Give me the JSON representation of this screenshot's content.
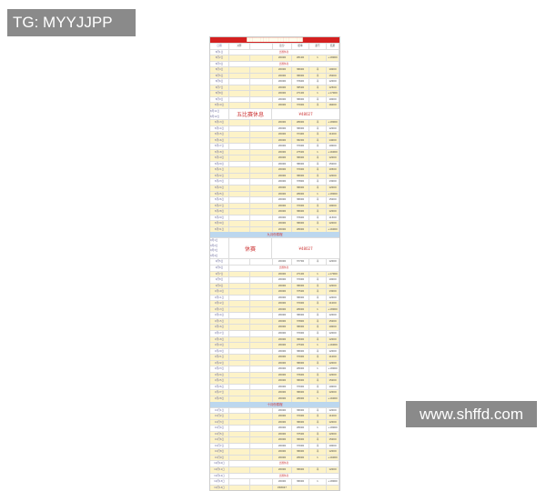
{
  "watermarks": {
    "top_left": "TG: MYYJJPP",
    "bottom_right": "www.shffd.com"
  },
  "sheet": {
    "title": "████████████████████",
    "columns": [
      "日期",
      "对阵",
      "",
      "比分",
      "赔率",
      "盈亏",
      "结果"
    ],
    "blocks": [
      {
        "type": "rows",
        "rows": [
          [
            "8月1日",
            "m:比赛休息"
          ],
          [
            "8月2日",
            "",
            "",
            "20000",
            "28100",
            "1",
            "+18000"
          ],
          [
            "8月3日",
            "m:比赛休息"
          ],
          [
            "8月4日",
            "",
            "",
            "20000",
            "38000",
            "平",
            "10000"
          ],
          [
            "8月5日",
            "",
            "",
            "20000",
            "38000",
            "平",
            "15000"
          ],
          [
            "8月6日",
            "",
            "",
            "20000",
            "37600",
            "平",
            "12000"
          ],
          [
            "8月7日",
            "",
            "",
            "20000",
            "38500",
            "平",
            "12500"
          ],
          [
            "8月8日",
            "",
            "",
            "20000",
            "27100",
            "1",
            "+17000"
          ],
          [
            "8月9日",
            "",
            "",
            "20000",
            "38000",
            "平",
            "10000"
          ],
          [
            "8月10日",
            "",
            "",
            "20000",
            "37000",
            "平",
            "16000"
          ]
        ]
      },
      {
        "type": "big",
        "dates": [
          "8月11日",
          "8月12日"
        ],
        "left": "五比赛休息",
        "right": "¥48027"
      },
      {
        "type": "rows",
        "rows": [
          [
            "8月13日",
            "",
            "",
            "20000",
            "28000",
            "平",
            "+18000"
          ],
          [
            "8月14日",
            "",
            "",
            "20000",
            "38000",
            "平",
            "12000"
          ],
          [
            "8月15日",
            "",
            "",
            "20000",
            "37400",
            "平",
            "11000"
          ],
          [
            "8月16日",
            "",
            "",
            "20000",
            "38200",
            "平",
            "14000"
          ],
          [
            "8月17日",
            "",
            "",
            "20000",
            "37000",
            "平",
            "10000"
          ],
          [
            "8月18日",
            "",
            "",
            "20000",
            "27500",
            "1",
            "+16000"
          ],
          [
            "8月19日",
            "",
            "",
            "20000",
            "38000",
            "平",
            "12000"
          ],
          [
            "8月20日",
            "",
            "",
            "20000",
            "38000",
            "平",
            "15000"
          ],
          [
            "8月21日",
            "",
            "",
            "20000",
            "37000",
            "平",
            "10500"
          ],
          [
            "8月22日",
            "",
            "",
            "20000",
            "38000",
            "平",
            "12000"
          ],
          [
            "8月23日",
            "",
            "",
            "20000",
            "37800",
            "平",
            "13000"
          ],
          [
            "8月24日",
            "",
            "",
            "20000",
            "38000",
            "平",
            "12000"
          ],
          [
            "8月25日",
            "",
            "",
            "20000",
            "28000",
            "1",
            "+18000"
          ],
          [
            "8月26日",
            "",
            "",
            "20000",
            "38000",
            "平",
            "15000"
          ],
          [
            "8月27日",
            "",
            "",
            "20000",
            "37000",
            "平",
            "10000"
          ],
          [
            "8月28日",
            "",
            "",
            "20000",
            "38000",
            "平",
            "12000"
          ],
          [
            "8月29日",
            "",
            "",
            "20000",
            "37600",
            "平",
            "11500"
          ],
          [
            "8月30日",
            "",
            "",
            "20000",
            "38000",
            "平",
            "12000"
          ],
          [
            "8月31日",
            "",
            "",
            "20000",
            "28000",
            "1",
            "+16000"
          ]
        ]
      },
      {
        "type": "section",
        "label": "九月份赛程"
      },
      {
        "type": "big",
        "dates": [
          "9月1日",
          "9月2日",
          "9月3日",
          "9月4日"
        ],
        "left": "休赛",
        "right": "¥48027"
      },
      {
        "type": "rows",
        "rows": [
          [
            "9月5日",
            "",
            "",
            "20000",
            "37700",
            "平",
            "12000"
          ],
          [
            "9月6日",
            "m:比赛休息"
          ],
          [
            "9月7日",
            "",
            "",
            "20000",
            "27100",
            "1",
            "+17000"
          ],
          [
            "9月8日",
            "",
            "",
            "20000",
            "37000",
            "平",
            "10000"
          ],
          [
            "9月9日",
            "",
            "",
            "20000",
            "38000",
            "平",
            "12000"
          ],
          [
            "9月10日",
            "",
            "",
            "20000",
            "37500",
            "平",
            "13000"
          ],
          [
            "9月11日",
            "",
            "",
            "20000",
            "38000",
            "平",
            "12000"
          ],
          [
            "9月12日",
            "",
            "",
            "20000",
            "37000",
            "平",
            "11000"
          ],
          [
            "9月13日",
            "",
            "",
            "20000",
            "28000",
            "1",
            "+18000"
          ],
          [
            "9月14日",
            "",
            "",
            "20000",
            "38000",
            "平",
            "12000"
          ],
          [
            "9月15日",
            "",
            "",
            "20000",
            "37800",
            "平",
            "15000"
          ],
          [
            "9月16日",
            "",
            "",
            "20000",
            "38000",
            "平",
            "10000"
          ],
          [
            "9月17日",
            "",
            "",
            "20000",
            "37000",
            "平",
            "12000"
          ],
          [
            "9月18日",
            "",
            "",
            "20000",
            "38000",
            "平",
            "12000"
          ],
          [
            "9月19日",
            "",
            "",
            "20000",
            "27500",
            "1",
            "+16000"
          ],
          [
            "9月20日",
            "",
            "",
            "20000",
            "38000",
            "平",
            "12000"
          ],
          [
            "9月21日",
            "",
            "",
            "20000",
            "37000",
            "平",
            "11000"
          ],
          [
            "9月22日",
            "",
            "",
            "20000",
            "38000",
            "平",
            "12000"
          ],
          [
            "9月23日",
            "",
            "",
            "20000",
            "28000",
            "1",
            "+18000"
          ],
          [
            "9月24日",
            "",
            "",
            "20000",
            "37600",
            "平",
            "12000"
          ],
          [
            "9月25日",
            "",
            "",
            "20000",
            "38000",
            "平",
            "15000"
          ],
          [
            "9月26日",
            "",
            "",
            "20000",
            "37000",
            "平",
            "10000"
          ],
          [
            "9月27日",
            "",
            "",
            "20000",
            "38000",
            "平",
            "12000"
          ],
          [
            "9月28日",
            "",
            "",
            "20000",
            "28000",
            "1",
            "+16000"
          ]
        ]
      },
      {
        "type": "section",
        "label": "十月份赛程"
      },
      {
        "type": "rows",
        "rows": [
          [
            "10月1日",
            "",
            "",
            "20000",
            "38000",
            "平",
            "12000"
          ],
          [
            "10月2日",
            "",
            "",
            "20000",
            "37000",
            "平",
            "11000"
          ],
          [
            "10月3日",
            "",
            "",
            "20000",
            "38000",
            "平",
            "12000"
          ],
          [
            "10月4日",
            "",
            "",
            "20000",
            "28000",
            "1",
            "+18000"
          ],
          [
            "10月5日",
            "",
            "",
            "20000",
            "37500",
            "平",
            "12000"
          ],
          [
            "10月6日",
            "",
            "",
            "20000",
            "38000",
            "平",
            "15000"
          ],
          [
            "10月7日",
            "",
            "",
            "20000",
            "37000",
            "平",
            "10000"
          ],
          [
            "10月8日",
            "",
            "",
            "20000",
            "38000",
            "平",
            "12000"
          ],
          [
            "10月9日",
            "",
            "",
            "20000",
            "28000",
            "1",
            "+16000"
          ],
          [
            "10月10日",
            "m:比赛休息"
          ],
          [
            "10月11日",
            "",
            "",
            "20000",
            "38000",
            "平",
            "12000"
          ],
          [
            "10月12日",
            "m:比赛休息"
          ],
          [
            "10月13日",
            "",
            "",
            "20000",
            "38000",
            "1",
            "+18000"
          ],
          [
            "10月14日",
            "",
            "",
            "¥48027"
          ]
        ]
      }
    ]
  }
}
